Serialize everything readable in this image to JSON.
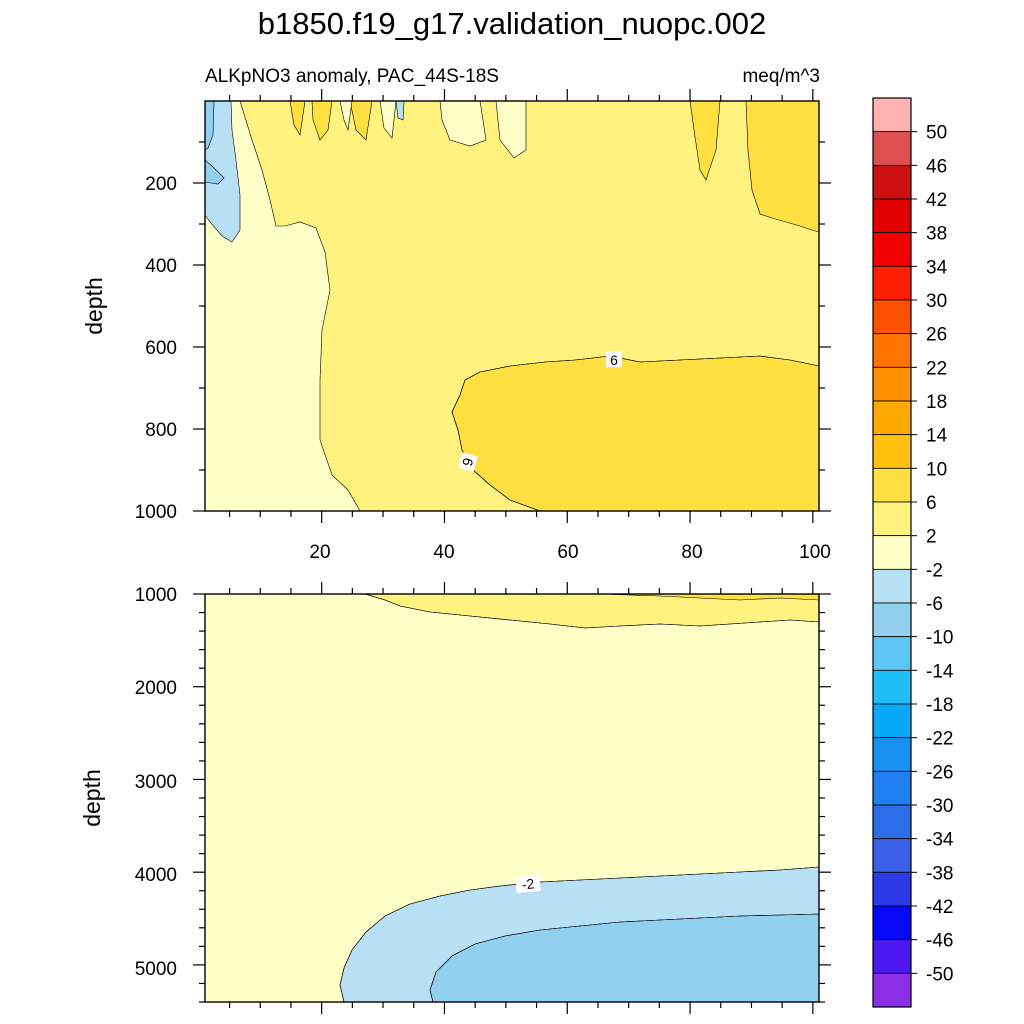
{
  "chart_data": [
    {
      "type": "heatmap",
      "panel": "upper",
      "title": "b1850.f19_g17.validation_nuopc.002",
      "subtitle_left": "ALKpNO3 anomaly, PAC_44S-18S",
      "subtitle_right": "meq/m^3",
      "xlabel": "",
      "ylabel": "depth",
      "xlim": [
        1,
        101
      ],
      "ylim": [
        0,
        1000
      ],
      "x_ticks": [
        "20",
        "40",
        "60",
        "80",
        "100"
      ],
      "y_ticks": [
        "200",
        "400",
        "600",
        "800",
        "1000"
      ],
      "y_inverted": true,
      "contour_labels": [
        "6",
        "6"
      ],
      "regions": [
        {
          "level": "2 to 6",
          "description": "most of the upper ocean"
        },
        {
          "level": "-2 to 2",
          "description": "western edge below 300 m and narrow near-surface streaks"
        },
        {
          "level": "6 to 10",
          "description": "lens from x 40 to 101 between 620 and 1000 m; eastern surface band to 320 m"
        },
        {
          "level": "-6 to -2",
          "description": "west boundary, surface to 300 m"
        },
        {
          "level": "-10 to -6",
          "description": "west boundary, surface to 110 m"
        }
      ]
    },
    {
      "type": "heatmap",
      "panel": "lower",
      "xlabel": "",
      "ylabel": "depth",
      "xlim": [
        1,
        101
      ],
      "ylim": [
        1000,
        5400
      ],
      "y_ticks": [
        "1000",
        "2000",
        "3000",
        "4000",
        "5000"
      ],
      "y_inverted": true,
      "contour_labels": [
        "-2"
      ],
      "regions": [
        {
          "level": "-2 to 2",
          "description": "most of the deep ocean"
        },
        {
          "level": "2 to 6",
          "description": "thin band near 1000-1300 m in the east"
        },
        {
          "level": "-6 to -2",
          "description": "abyssal layer below 3900 m, x > 23"
        },
        {
          "level": "-10 to -6",
          "description": "deepest core below 4400 m, x > 38"
        }
      ]
    }
  ],
  "colorbar": {
    "labels": [
      "50",
      "46",
      "42",
      "38",
      "34",
      "30",
      "26",
      "22",
      "18",
      "14",
      "10",
      "6",
      "2",
      "-2",
      "-6",
      "-10",
      "-14",
      "-18",
      "-22",
      "-26",
      "-30",
      "-34",
      "-38",
      "-42",
      "-46",
      "-50"
    ],
    "colors": [
      "#ffb0b0",
      "#e05252",
      "#cc1010",
      "#e00000",
      "#f20000",
      "#ff1e00",
      "#ff5000",
      "#ff7300",
      "#ff9000",
      "#ffa800",
      "#ffc010",
      "#ffe040",
      "#fff27e",
      "#ffffc8",
      "#b8e0f5",
      "#92d0ef",
      "#5ec6f2",
      "#1ebef8",
      "#08aaf8",
      "#1892f2",
      "#2080f0",
      "#2c6ee8",
      "#3a60e8",
      "#2c3ae8",
      "#0808f8",
      "#4c18f0",
      "#8a2ee8"
    ]
  }
}
